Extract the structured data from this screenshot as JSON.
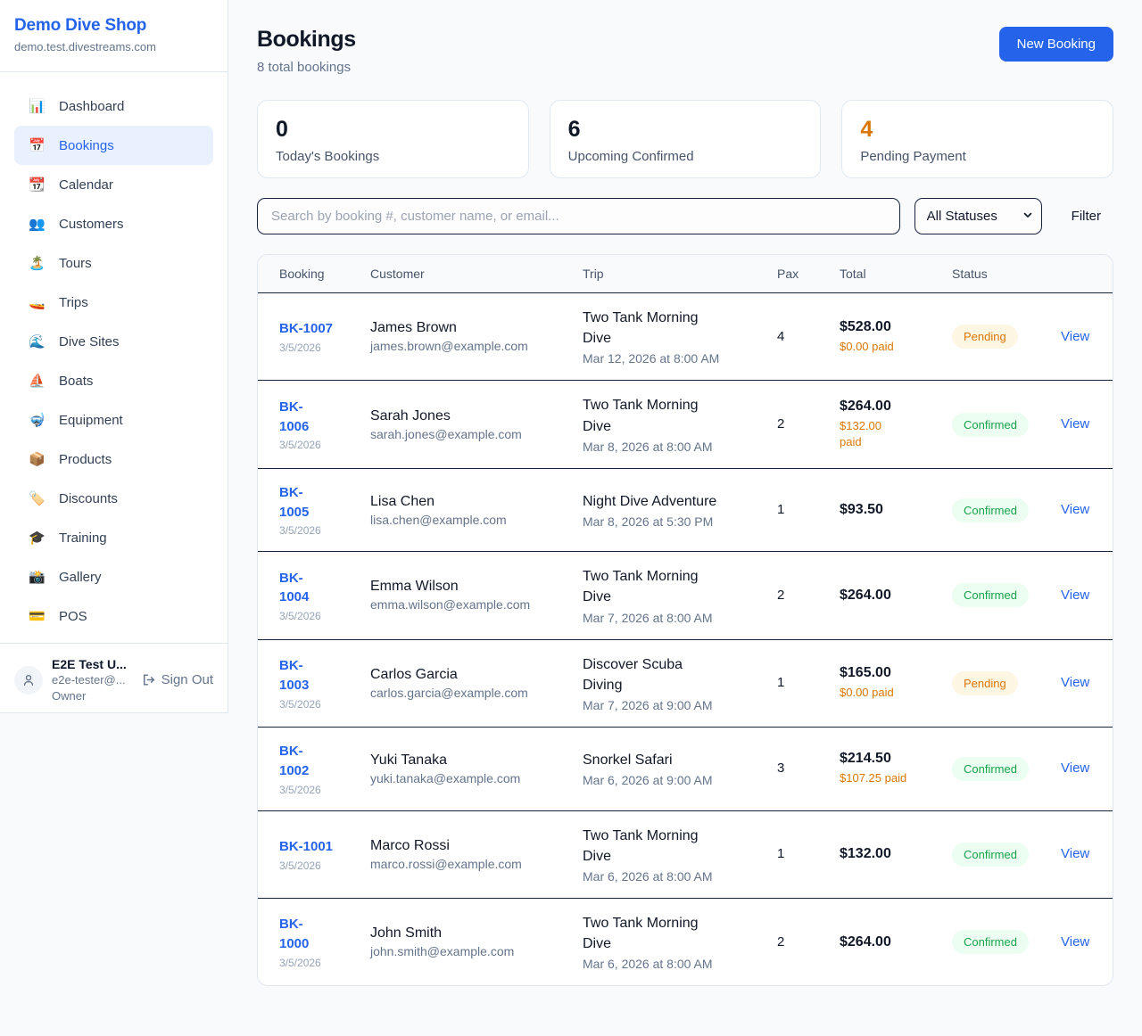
{
  "colors": {
    "accent": "#2563eb",
    "pending_text": "#d97706",
    "pending_bg": "#fdf6e3",
    "confirmed_text": "#16a34a",
    "confirmed_bg": "#ecfdf1",
    "stat_warning": "#d97706"
  },
  "sidebar": {
    "brand": "Demo Dive Shop",
    "domain": "demo.test.divestreams.com",
    "items": [
      {
        "label": "Dashboard",
        "icon": "bar-chart-icon",
        "glyph": "📊",
        "active": false
      },
      {
        "label": "Bookings",
        "icon": "calendar-icon",
        "glyph": "📅",
        "active": true
      },
      {
        "label": "Calendar",
        "icon": "tearoff-calendar-icon",
        "glyph": "📆",
        "active": false
      },
      {
        "label": "Customers",
        "icon": "people-icon",
        "glyph": "👥",
        "active": false
      },
      {
        "label": "Tours",
        "icon": "island-icon",
        "glyph": "🏝️",
        "active": false
      },
      {
        "label": "Trips",
        "icon": "speedboat-icon",
        "glyph": "🚤",
        "active": false
      },
      {
        "label": "Dive Sites",
        "icon": "wave-icon",
        "glyph": "🌊",
        "active": false
      },
      {
        "label": "Boats",
        "icon": "sailboat-icon",
        "glyph": "⛵",
        "active": false
      },
      {
        "label": "Equipment",
        "icon": "diving-mask-icon",
        "glyph": "🤿",
        "active": false
      },
      {
        "label": "Products",
        "icon": "package-icon",
        "glyph": "📦",
        "active": false
      },
      {
        "label": "Discounts",
        "icon": "label-tag-icon",
        "glyph": "🏷️",
        "active": false
      },
      {
        "label": "Training",
        "icon": "graduation-cap-icon",
        "glyph": "🎓",
        "active": false
      },
      {
        "label": "Gallery",
        "icon": "camera-flash-icon",
        "glyph": "📸",
        "active": false
      },
      {
        "label": "POS",
        "icon": "credit-card-icon",
        "glyph": "💳",
        "active": false
      }
    ],
    "user": {
      "name": "E2E Test U...",
      "email": "e2e-tester@...",
      "role": "Owner",
      "signout_label": "Sign Out"
    }
  },
  "header": {
    "title": "Bookings",
    "subtitle": "8 total bookings",
    "new_booking_label": "New Booking"
  },
  "stats": [
    {
      "value": "0",
      "label": "Today's Bookings",
      "color": "#111827"
    },
    {
      "value": "6",
      "label": "Upcoming Confirmed",
      "color": "#111827"
    },
    {
      "value": "4",
      "label": "Pending Payment",
      "color": "#d97706"
    }
  ],
  "filters": {
    "search_placeholder": "Search by booking #, customer name, or email...",
    "status_selected": "All Statuses",
    "filter_label": "Filter"
  },
  "table": {
    "columns": [
      "Booking",
      "Customer",
      "Trip",
      "Pax",
      "Total",
      "Status"
    ],
    "view_label": "View",
    "rows": [
      {
        "id": "BK-1007",
        "id_wrap": false,
        "date": "3/5/2026",
        "name": "James Brown",
        "email": "james.brown@example.com",
        "trip": "Two Tank Morning Dive",
        "trip_wrap": true,
        "datetime": "Mar 12, 2026 at 8:00 AM",
        "pax": "4",
        "total": "$528.00",
        "paid": "$0.00 paid",
        "paid_wrap": false,
        "status": "Pending"
      },
      {
        "id": "BK-1006",
        "id_wrap": true,
        "date": "3/5/2026",
        "name": "Sarah Jones",
        "email": "sarah.jones@example.com",
        "trip": "Two Tank Morning Dive",
        "trip_wrap": true,
        "datetime": "Mar 8, 2026 at 8:00 AM",
        "pax": "2",
        "total": "$264.00",
        "paid": "$132.00 paid",
        "paid_wrap": true,
        "status": "Confirmed"
      },
      {
        "id": "BK-1005",
        "id_wrap": true,
        "date": "3/5/2026",
        "name": "Lisa Chen",
        "email": "lisa.chen@example.com",
        "trip": "Night Dive Adventure",
        "trip_wrap": false,
        "datetime": "Mar 8, 2026 at 5:30 PM",
        "pax": "1",
        "total": "$93.50",
        "paid": null,
        "paid_wrap": false,
        "status": "Confirmed"
      },
      {
        "id": "BK-1004",
        "id_wrap": true,
        "date": "3/5/2026",
        "name": "Emma Wilson",
        "email": "emma.wilson@example.com",
        "trip": "Two Tank Morning Dive",
        "trip_wrap": true,
        "datetime": "Mar 7, 2026 at 8:00 AM",
        "pax": "2",
        "total": "$264.00",
        "paid": null,
        "paid_wrap": false,
        "status": "Confirmed"
      },
      {
        "id": "BK-1003",
        "id_wrap": true,
        "date": "3/5/2026",
        "name": "Carlos Garcia",
        "email": "carlos.garcia@example.com",
        "trip": "Discover Scuba Diving",
        "trip_wrap": true,
        "datetime": "Mar 7, 2026 at 9:00 AM",
        "pax": "1",
        "total": "$165.00",
        "paid": "$0.00 paid",
        "paid_wrap": false,
        "status": "Pending"
      },
      {
        "id": "BK-1002",
        "id_wrap": true,
        "date": "3/5/2026",
        "name": "Yuki Tanaka",
        "email": "yuki.tanaka@example.com",
        "trip": "Snorkel Safari",
        "trip_wrap": false,
        "datetime": "Mar 6, 2026 at 9:00 AM",
        "pax": "3",
        "total": "$214.50",
        "paid": "$107.25 paid",
        "paid_wrap": false,
        "status": "Confirmed"
      },
      {
        "id": "BK-1001",
        "id_wrap": false,
        "date": "3/5/2026",
        "name": "Marco Rossi",
        "email": "marco.rossi@example.com",
        "trip": "Two Tank Morning Dive",
        "trip_wrap": true,
        "datetime": "Mar 6, 2026 at 8:00 AM",
        "pax": "1",
        "total": "$132.00",
        "paid": null,
        "paid_wrap": false,
        "status": "Confirmed"
      },
      {
        "id": "BK-1000",
        "id_wrap": true,
        "date": "3/5/2026",
        "name": "John Smith",
        "email": "john.smith@example.com",
        "trip": "Two Tank Morning Dive",
        "trip_wrap": true,
        "datetime": "Mar 6, 2026 at 8:00 AM",
        "pax": "2",
        "total": "$264.00",
        "paid": null,
        "paid_wrap": false,
        "status": "Confirmed"
      }
    ]
  }
}
